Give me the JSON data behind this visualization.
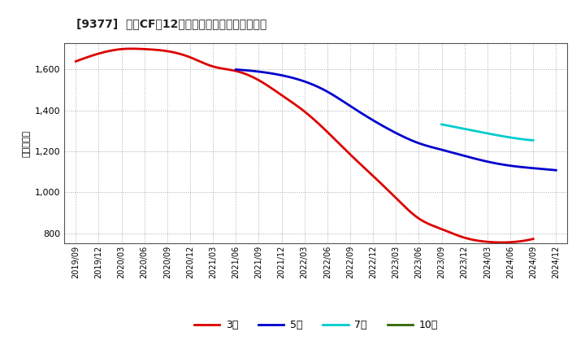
{
  "title": "[9377]  営業CFの12か月移動合計の平均値の推移",
  "ylabel": "（百万円）",
  "background_color": "#ffffff",
  "plot_bg_color": "#ffffff",
  "grid_color": "#aaaaaa",
  "ylim": [
    750,
    1730
  ],
  "yticks": [
    800,
    1000,
    1200,
    1400,
    1600
  ],
  "series": {
    "3年": {
      "color": "#dd0000",
      "points": [
        [
          "2019/09",
          1640
        ],
        [
          "2019/12",
          1678
        ],
        [
          "2020/03",
          1700
        ],
        [
          "2020/06",
          1700
        ],
        [
          "2020/09",
          1690
        ],
        [
          "2020/12",
          1660
        ],
        [
          "2021/03",
          1615
        ],
        [
          "2021/06",
          1593
        ],
        [
          "2021/09",
          1548
        ],
        [
          "2021/12",
          1475
        ],
        [
          "2022/03",
          1395
        ],
        [
          "2022/06",
          1295
        ],
        [
          "2022/09",
          1185
        ],
        [
          "2022/12",
          1080
        ],
        [
          "2023/03",
          972
        ],
        [
          "2023/06",
          872
        ],
        [
          "2023/09",
          820
        ],
        [
          "2023/12",
          778
        ],
        [
          "2024/03",
          758
        ],
        [
          "2024/06",
          756
        ],
        [
          "2024/09",
          772
        ]
      ]
    },
    "5年": {
      "color": "#0000cc",
      "points": [
        [
          "2021/06",
          1600
        ],
        [
          "2021/09",
          1590
        ],
        [
          "2021/12",
          1572
        ],
        [
          "2022/03",
          1542
        ],
        [
          "2022/06",
          1492
        ],
        [
          "2022/09",
          1422
        ],
        [
          "2022/12",
          1352
        ],
        [
          "2023/03",
          1290
        ],
        [
          "2023/06",
          1240
        ],
        [
          "2023/09",
          1208
        ],
        [
          "2023/12",
          1178
        ],
        [
          "2024/03",
          1150
        ],
        [
          "2024/06",
          1130
        ],
        [
          "2024/09",
          1118
        ],
        [
          "2024/12",
          1108
        ]
      ]
    },
    "7年": {
      "color": "#00cccc",
      "points": [
        [
          "2023/09",
          1332
        ],
        [
          "2023/12",
          1310
        ],
        [
          "2024/03",
          1288
        ],
        [
          "2024/06",
          1268
        ],
        [
          "2024/09",
          1254
        ]
      ]
    },
    "10年": {
      "color": "#336600",
      "points": []
    }
  },
  "xtick_labels": [
    "2019/09",
    "2019/12",
    "2020/03",
    "2020/06",
    "2020/09",
    "2020/12",
    "2021/03",
    "2021/06",
    "2021/09",
    "2021/12",
    "2022/03",
    "2022/06",
    "2022/09",
    "2022/12",
    "2023/03",
    "2023/06",
    "2023/09",
    "2023/12",
    "2024/03",
    "2024/06",
    "2024/09",
    "2024/12"
  ],
  "legend_labels": [
    "3年",
    "5年",
    "7年",
    "10年"
  ]
}
